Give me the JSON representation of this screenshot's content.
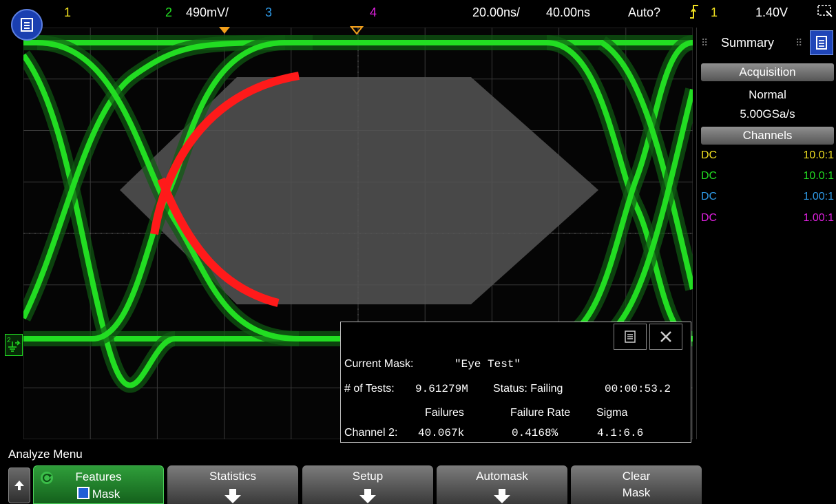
{
  "top_bar": {
    "ch1_label": "1",
    "ch2_label": "2",
    "ch2_scale": "490mV/",
    "ch3_label": "3",
    "ch4_label": "4",
    "timebase": "20.00ns/",
    "delay": "40.00ns",
    "trigger_mode": "Auto?",
    "trigger_source": "1",
    "trigger_level": "1.40V"
  },
  "sidebar": {
    "tab_label": "Summary",
    "acquisition_header": "Acquisition",
    "acquisition_mode": "Normal",
    "sample_rate": "5.00GSa/s",
    "channels_header": "Channels",
    "channels": [
      {
        "coupling": "DC",
        "probe": "10.0:1",
        "color": "#f0e020"
      },
      {
        "coupling": "DC",
        "probe": "10.0:1",
        "color": "#22dd22"
      },
      {
        "coupling": "DC",
        "probe": "1.00:1",
        "color": "#2f9be8"
      },
      {
        "coupling": "DC",
        "probe": "1.00:1",
        "color": "#e020e0"
      }
    ]
  },
  "mask_panel": {
    "current_mask_label": "Current Mask:",
    "current_mask_value": "\"Eye Test\"",
    "tests_label": "# of Tests:",
    "tests_value": "9.61279M",
    "status_text": "Status: Failing",
    "elapsed": "00:00:53.2",
    "col_failures": "Failures",
    "col_failure_rate": "Failure Rate",
    "col_sigma": "Sigma",
    "row_label": "Channel 2:",
    "failures_value": "40.067k",
    "failure_rate_value": "0.4168%",
    "sigma_value": "4.1:6.6"
  },
  "softkeys": {
    "menu_title": "Analyze Menu",
    "features_l1": "Features",
    "features_l2": "Mask",
    "statistics": "Statistics",
    "setup": "Setup",
    "automask": "Automask",
    "clear_l1": "Clear",
    "clear_l2": "Mask"
  },
  "colors": {
    "ch1": "#f0e020",
    "ch2": "#22dd22",
    "ch3": "#2f9be8",
    "ch4": "#e020e0",
    "mask_fail": "#ff1a1a",
    "mask_region": "#555555"
  },
  "icons": [
    "menu-icon",
    "close-icon",
    "up-arrow-icon",
    "down-arrow-icon",
    "trigger-edge-icon",
    "ground-marker-icon"
  ]
}
